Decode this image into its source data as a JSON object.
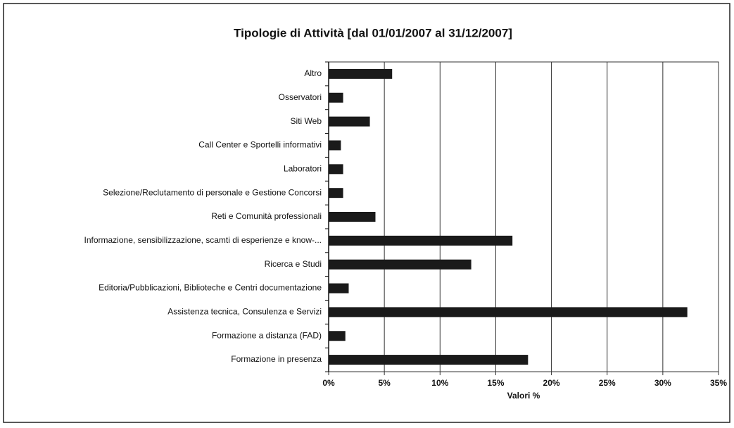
{
  "chart_data": {
    "type": "bar",
    "orientation": "horizontal",
    "title": "Tipologie di Attività [dal 01/01/2007 al 31/12/2007]",
    "x_label": "Valori %",
    "categories": [
      "Altro",
      "Osservatori",
      "Siti Web",
      "Call Center e Sportelli informativi",
      "Laboratori",
      "Selezione/Reclutamento di personale e Gestione Concorsi",
      "Reti e Comunità professionali",
      "Informazione, sensibilizzazione,  scamti di esperienze e know-...",
      "Ricerca e Studi",
      "Editoria/Pubblicazioni, Biblioteche e Centri documentazione",
      "Assistenza tecnica, Consulenza e Servizi",
      "Formazione a distanza (FAD)",
      "Formazione in presenza"
    ],
    "values": [
      5.7,
      1.3,
      3.7,
      1.1,
      1.3,
      1.3,
      4.2,
      16.5,
      12.8,
      1.8,
      32.2,
      1.5,
      17.9
    ],
    "color": "#1a1a1a",
    "xlim": [
      0,
      35
    ],
    "xticks": [
      {
        "value": 0,
        "label": "0%"
      },
      {
        "value": 5,
        "label": "5%"
      },
      {
        "value": 10,
        "label": "10%"
      },
      {
        "value": 15,
        "label": "15%"
      },
      {
        "value": 20,
        "label": "20%"
      },
      {
        "value": 25,
        "label": "25%"
      },
      {
        "value": 30,
        "label": "30%"
      },
      {
        "value": 35,
        "label": "35%"
      }
    ],
    "grid": true
  }
}
